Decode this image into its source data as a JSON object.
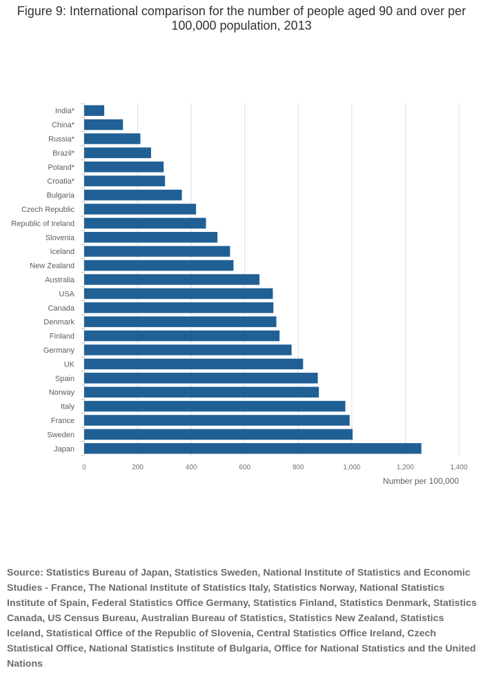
{
  "chart_data": {
    "type": "bar",
    "orientation": "horizontal",
    "title": "Figure 9: International comparison for the number of people aged 90 and over per 100,000 population, 2013",
    "categories": [
      "India*",
      "China*",
      "Russia*",
      "Brazil*",
      "Poland*",
      "Croatia*",
      "Bulgaria",
      "Czech Republic",
      "Republic of Ireland",
      "Slovenia",
      "Iceland",
      "New Zealand",
      "Australia",
      "USA",
      "Canada",
      "Denmark",
      "Finland",
      "Germany",
      "UK",
      "Spain",
      "Norway",
      "Italy",
      "France",
      "Sweden",
      "Japan"
    ],
    "values": [
      75,
      145,
      210,
      250,
      297,
      302,
      365,
      418,
      455,
      498,
      545,
      558,
      655,
      705,
      707,
      718,
      730,
      775,
      818,
      873,
      877,
      976,
      992,
      1003,
      1260
    ],
    "xlabel": "Number per 100,000",
    "ylabel": "",
    "xlim": [
      0,
      1400
    ],
    "xticks": [
      "0",
      "200",
      "400",
      "600",
      "800",
      "1,000",
      "1,200",
      "1,400"
    ],
    "bar_color": "#206095",
    "grid_color": "#e0e0e0"
  },
  "source": "Source: Statistics Bureau of Japan, Statistics Sweden, National Institute of Statistics and Economic Studies - France, The National Institute of Statistics Italy, Statistics Norway, National Statistics Institute of Spain, Federal Statistics Office Germany, Statistics Finland, Statistics Denmark, Statistics Canada, US Census Bureau, Australian Bureau of Statistics, Statistics New Zealand, Statistics Iceland, Statistical Office of the Republic of Slovenia, Central Statistics Office Ireland, Czech Statistical Office, National Statistics Institute of Bulgaria, Office for National Statistics and the United Nations"
}
